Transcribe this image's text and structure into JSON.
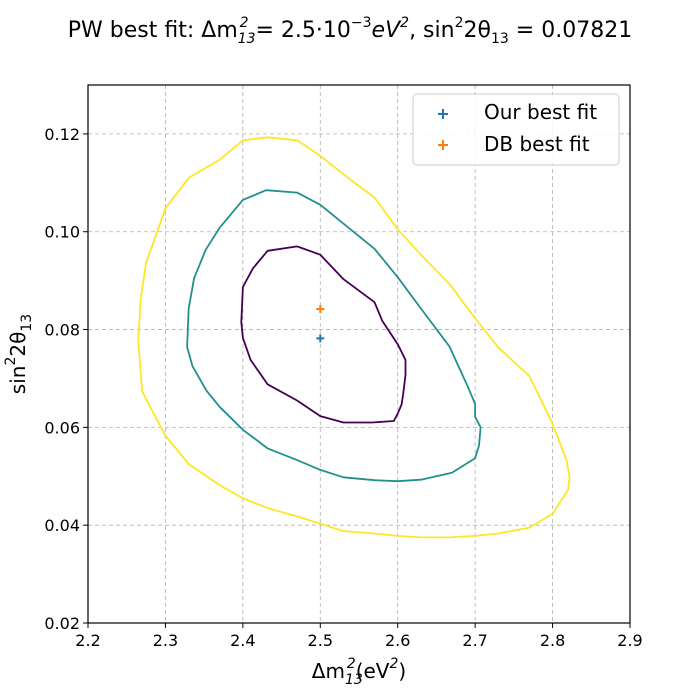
{
  "chart_data": {
    "type": "contour",
    "title": {
      "prefix": "PW best fit: Δm",
      "dm_sub": "13",
      "dm_sup": "2",
      "dm_value": " = 2.5·10",
      "dm_exp": "−3",
      "unit": "eV",
      "unit_sup": "2",
      "sin_prefix": ", sin",
      "sin_sup": "2",
      "sin_theta": "2θ",
      "sin_sub": "13",
      "sin_value": " = 0.07821"
    },
    "xlabel": {
      "base": "Δm",
      "sub": "13",
      "sup": "2",
      "tail": "(eV",
      "tail_sup": "2",
      "close": ")"
    },
    "ylabel": {
      "base": "sin",
      "sup": "2",
      "mid": "2θ",
      "sub": "13"
    },
    "xlim": [
      2.2,
      2.9
    ],
    "ylim": [
      0.02,
      0.13
    ],
    "xticks": [
      2.2,
      2.3,
      2.4,
      2.5,
      2.6,
      2.7,
      2.8,
      2.9
    ],
    "yticks": [
      0.02,
      0.04,
      0.06,
      0.08,
      0.1,
      0.12
    ],
    "xtick_labels": [
      "2.2",
      "2.3",
      "2.4",
      "2.5",
      "2.6",
      "2.7",
      "2.8",
      "2.9"
    ],
    "ytick_labels": [
      "0.02",
      "0.04",
      "0.06",
      "0.08",
      "0.10",
      "0.12"
    ],
    "grid": true,
    "legend_position": "top-right",
    "contours": [
      {
        "color": "#440154",
        "points": [
          [
            2.47,
            0.097
          ],
          [
            2.5,
            0.0953
          ],
          [
            2.53,
            0.0903
          ],
          [
            2.57,
            0.0856
          ],
          [
            2.58,
            0.0818
          ],
          [
            2.6,
            0.077
          ],
          [
            2.61,
            0.0738
          ],
          [
            2.61,
            0.0707
          ],
          [
            2.607,
            0.0667
          ],
          [
            2.605,
            0.0647
          ],
          [
            2.6,
            0.0628
          ],
          [
            2.595,
            0.0613
          ],
          [
            2.567,
            0.061
          ],
          [
            2.53,
            0.061
          ],
          [
            2.5,
            0.0623
          ],
          [
            2.47,
            0.0655
          ],
          [
            2.432,
            0.0688
          ],
          [
            2.41,
            0.0738
          ],
          [
            2.4,
            0.0783
          ],
          [
            2.398,
            0.0815
          ],
          [
            2.4,
            0.0887
          ],
          [
            2.413,
            0.0925
          ],
          [
            2.432,
            0.0961
          ],
          [
            2.47,
            0.097
          ]
        ]
      },
      {
        "color": "#21908d",
        "points": [
          [
            2.43,
            0.1085
          ],
          [
            2.47,
            0.108
          ],
          [
            2.5,
            0.1055
          ],
          [
            2.57,
            0.0965
          ],
          [
            2.6,
            0.0907
          ],
          [
            2.63,
            0.0843
          ],
          [
            2.667,
            0.0765
          ],
          [
            2.69,
            0.0685
          ],
          [
            2.7,
            0.0648
          ],
          [
            2.7,
            0.0622
          ],
          [
            2.707,
            0.06
          ],
          [
            2.705,
            0.0563
          ],
          [
            2.7,
            0.0537
          ],
          [
            2.67,
            0.0507
          ],
          [
            2.63,
            0.0493
          ],
          [
            2.6,
            0.049
          ],
          [
            2.57,
            0.0492
          ],
          [
            2.53,
            0.0498
          ],
          [
            2.5,
            0.0513
          ],
          [
            2.47,
            0.0533
          ],
          [
            2.432,
            0.0557
          ],
          [
            2.4,
            0.0595
          ],
          [
            2.37,
            0.0642
          ],
          [
            2.353,
            0.0675
          ],
          [
            2.335,
            0.0725
          ],
          [
            2.328,
            0.0765
          ],
          [
            2.33,
            0.0843
          ],
          [
            2.337,
            0.0905
          ],
          [
            2.352,
            0.0963
          ],
          [
            2.37,
            0.1008
          ],
          [
            2.4,
            0.1065
          ],
          [
            2.43,
            0.1085
          ]
        ]
      },
      {
        "color": "#fde725",
        "points": [
          [
            2.432,
            0.1193
          ],
          [
            2.47,
            0.1187
          ],
          [
            2.5,
            0.1155
          ],
          [
            2.54,
            0.1105
          ],
          [
            2.57,
            0.107
          ],
          [
            2.6,
            0.1005
          ],
          [
            2.63,
            0.0953
          ],
          [
            2.667,
            0.0893
          ],
          [
            2.7,
            0.0823
          ],
          [
            2.73,
            0.0763
          ],
          [
            2.77,
            0.0705
          ],
          [
            2.8,
            0.0607
          ],
          [
            2.818,
            0.0533
          ],
          [
            2.822,
            0.0497
          ],
          [
            2.82,
            0.0473
          ],
          [
            2.8,
            0.0423
          ],
          [
            2.77,
            0.0395
          ],
          [
            2.73,
            0.0383
          ],
          [
            2.7,
            0.0378
          ],
          [
            2.667,
            0.0375
          ],
          [
            2.63,
            0.0375
          ],
          [
            2.6,
            0.0378
          ],
          [
            2.57,
            0.0383
          ],
          [
            2.53,
            0.0388
          ],
          [
            2.5,
            0.0403
          ],
          [
            2.47,
            0.0418
          ],
          [
            2.432,
            0.0435
          ],
          [
            2.4,
            0.0455
          ],
          [
            2.37,
            0.0482
          ],
          [
            2.33,
            0.0525
          ],
          [
            2.3,
            0.0583
          ],
          [
            2.27,
            0.0673
          ],
          [
            2.265,
            0.0777
          ],
          [
            2.268,
            0.0862
          ],
          [
            2.275,
            0.0937
          ],
          [
            2.29,
            0.1003
          ],
          [
            2.3,
            0.1048
          ],
          [
            2.33,
            0.111
          ],
          [
            2.37,
            0.1147
          ],
          [
            2.4,
            0.1187
          ],
          [
            2.432,
            0.1193
          ]
        ]
      }
    ],
    "markers": [
      {
        "name": "Our best fit",
        "x": 2.5,
        "y": 0.0782,
        "color": "#1f77b4"
      },
      {
        "name": "DB best fit",
        "x": 2.5,
        "y": 0.0842,
        "color": "#ff7f0e"
      }
    ]
  }
}
